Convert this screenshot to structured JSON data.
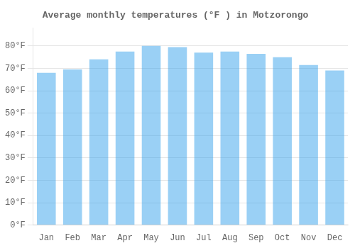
{
  "chart_data": {
    "type": "bar",
    "title": "Average monthly temperatures (°F ) in Motzorongo",
    "categories": [
      "Jan",
      "Feb",
      "Mar",
      "Apr",
      "May",
      "Jun",
      "Jul",
      "Aug",
      "Sep",
      "Oct",
      "Nov",
      "Dec"
    ],
    "values": [
      68.0,
      69.5,
      74.0,
      77.5,
      80.0,
      79.5,
      77.0,
      77.5,
      76.5,
      75.0,
      71.5,
      69.0
    ],
    "ylim": [
      0,
      88
    ],
    "yticks": [
      {
        "value": 0,
        "label": "0°F"
      },
      {
        "value": 10,
        "label": "10°F"
      },
      {
        "value": 20,
        "label": "20°F"
      },
      {
        "value": 30,
        "label": "30°F"
      },
      {
        "value": 40,
        "label": "40°F"
      },
      {
        "value": 50,
        "label": "50°F"
      },
      {
        "value": 60,
        "label": "60°F"
      },
      {
        "value": 70,
        "label": "70°F"
      },
      {
        "value": 80,
        "label": "80°F"
      }
    ],
    "grid": true
  }
}
